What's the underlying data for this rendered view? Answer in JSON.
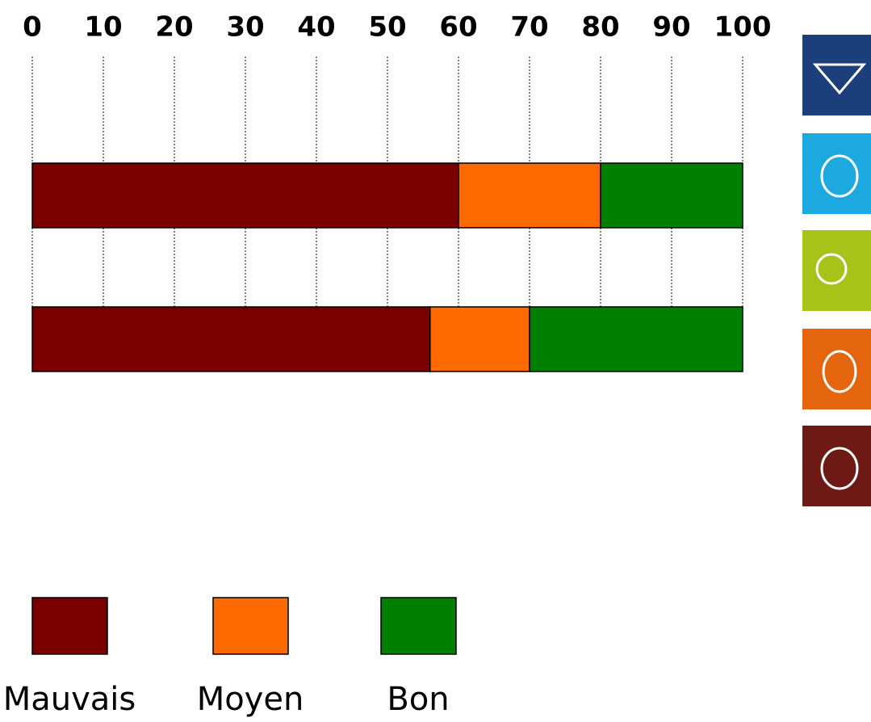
{
  "chart_data": {
    "type": "stacked-bar-horizontal",
    "categories": [
      null,
      null
    ],
    "series": [
      {
        "name": "Mauvais",
        "color": "#7a0000",
        "values": [
          60,
          56
        ]
      },
      {
        "name": "Moyen",
        "color": "#ff6a00",
        "values": [
          20,
          14
        ]
      },
      {
        "name": "Bon",
        "color": "#008000",
        "values": [
          20,
          30
        ]
      }
    ],
    "xlim": [
      0,
      100
    ],
    "xticks": [
      0,
      10,
      20,
      30,
      40,
      50,
      60,
      70,
      80,
      90,
      100
    ],
    "grid": true
  }
}
